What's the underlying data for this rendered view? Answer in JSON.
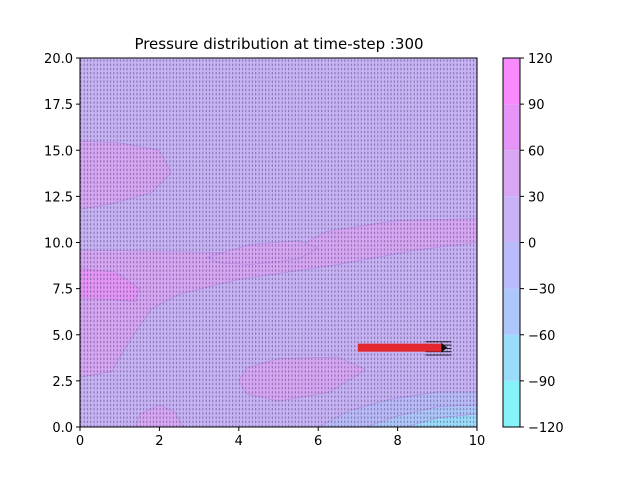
{
  "chart_data": {
    "type": "contour",
    "title": "Pressure distribution at time-step :300",
    "xlabel": "",
    "ylabel": "",
    "xlim": [
      0,
      10
    ],
    "ylim": [
      0,
      20
    ],
    "x_ticks": [
      "0",
      "2",
      "4",
      "6",
      "8",
      "10"
    ],
    "y_ticks": [
      "0.0",
      "2.5",
      "5.0",
      "7.5",
      "10.0",
      "12.5",
      "15.0",
      "17.5",
      "20.0"
    ],
    "colorbar": {
      "levels": [
        -120,
        -90,
        -60,
        -30,
        0,
        30,
        60,
        90,
        120
      ],
      "tick_labels": [
        "−120",
        "−90",
        "−60",
        "−30",
        "0",
        "30",
        "60",
        "90",
        "120"
      ],
      "colors": [
        "#88f2fb",
        "#9bdcfb",
        "#aec7fb",
        "#b9bbfa",
        "#c8b3f6",
        "#d7a6f5",
        "#e595f8",
        "#f98afd"
      ]
    },
    "regions": [
      {
        "level_band": [
          0,
          30
        ],
        "color": "#c8b3f6",
        "outline": [
          [
            0,
            0
          ],
          [
            10,
            0
          ],
          [
            10,
            20
          ],
          [
            0,
            20
          ]
        ]
      },
      {
        "level_band": [
          30,
          60
        ],
        "color": "#d7a6f5",
        "outline": [
          [
            0,
            9.6
          ],
          [
            5.2,
            9.4
          ],
          [
            6.2,
            10.6
          ],
          [
            8,
            11.2
          ],
          [
            10,
            11.3
          ],
          [
            10,
            10
          ],
          [
            8.5,
            9.6
          ],
          [
            6.5,
            8.8
          ],
          [
            4,
            8
          ],
          [
            2.5,
            7.2
          ],
          [
            1.8,
            6.4
          ],
          [
            1.2,
            4.5
          ],
          [
            0.8,
            3
          ],
          [
            0,
            2.7
          ]
        ]
      },
      {
        "level_band": [
          30,
          60
        ],
        "color": "#d7a6f5",
        "outline": [
          [
            0,
            11.8
          ],
          [
            0.8,
            12.1
          ],
          [
            1.8,
            12.7
          ],
          [
            2.3,
            13.8
          ],
          [
            2,
            15
          ],
          [
            1,
            15.4
          ],
          [
            0,
            15.5
          ]
        ]
      },
      {
        "level_band": [
          30,
          60
        ],
        "color": "#d7a6f5",
        "outline": [
          [
            4.2,
            3.2
          ],
          [
            5,
            3.7
          ],
          [
            6.5,
            3.8
          ],
          [
            7.2,
            3.1
          ],
          [
            6.3,
            1.9
          ],
          [
            5,
            1.4
          ],
          [
            4.2,
            1.8
          ],
          [
            4,
            2.5
          ]
        ]
      },
      {
        "level_band": [
          30,
          60
        ],
        "color": "#d7a6f5",
        "outline": [
          [
            3.2,
            9.2
          ],
          [
            4.3,
            9.9
          ],
          [
            5.5,
            10.1
          ],
          [
            6,
            9.7
          ],
          [
            5.5,
            9.1
          ],
          [
            4.3,
            8.8
          ],
          [
            3.5,
            8.9
          ]
        ]
      },
      {
        "level_band": [
          30,
          60
        ],
        "color": "#d7a6f5",
        "outline": [
          [
            1.4,
            0
          ],
          [
            1.5,
            0.7
          ],
          [
            2,
            1.2
          ],
          [
            2.4,
            0.8
          ],
          [
            2.6,
            0
          ]
        ]
      },
      {
        "level_band": [
          60,
          90
        ],
        "color": "#e595f8",
        "outline": [
          [
            0,
            8.6
          ],
          [
            0.9,
            8.4
          ],
          [
            1.5,
            7.5
          ],
          [
            1.4,
            6.8
          ],
          [
            0.8,
            6.9
          ],
          [
            0,
            7
          ]
        ]
      },
      {
        "level_band": [
          -30,
          0
        ],
        "color": "#b9bbfa",
        "outline": [
          [
            6,
            0
          ],
          [
            6.8,
            0.9
          ],
          [
            7.8,
            1.5
          ],
          [
            9,
            1.9
          ],
          [
            10,
            1.9
          ],
          [
            10,
            0
          ]
        ]
      },
      {
        "level_band": [
          -60,
          -30
        ],
        "color": "#aec7fb",
        "outline": [
          [
            7.2,
            0
          ],
          [
            8,
            0.6
          ],
          [
            9,
            1.1
          ],
          [
            10,
            1.2
          ],
          [
            10,
            0
          ]
        ]
      },
      {
        "level_band": [
          -90,
          -60
        ],
        "color": "#9bdcfb",
        "outline": [
          [
            8.2,
            0
          ],
          [
            9,
            0.5
          ],
          [
            10,
            0.7
          ],
          [
            10,
            0
          ]
        ]
      }
    ],
    "jet": {
      "from": [
        7.0,
        4.3
      ],
      "to": [
        9.1,
        4.3
      ],
      "color": "#e3292f"
    }
  }
}
